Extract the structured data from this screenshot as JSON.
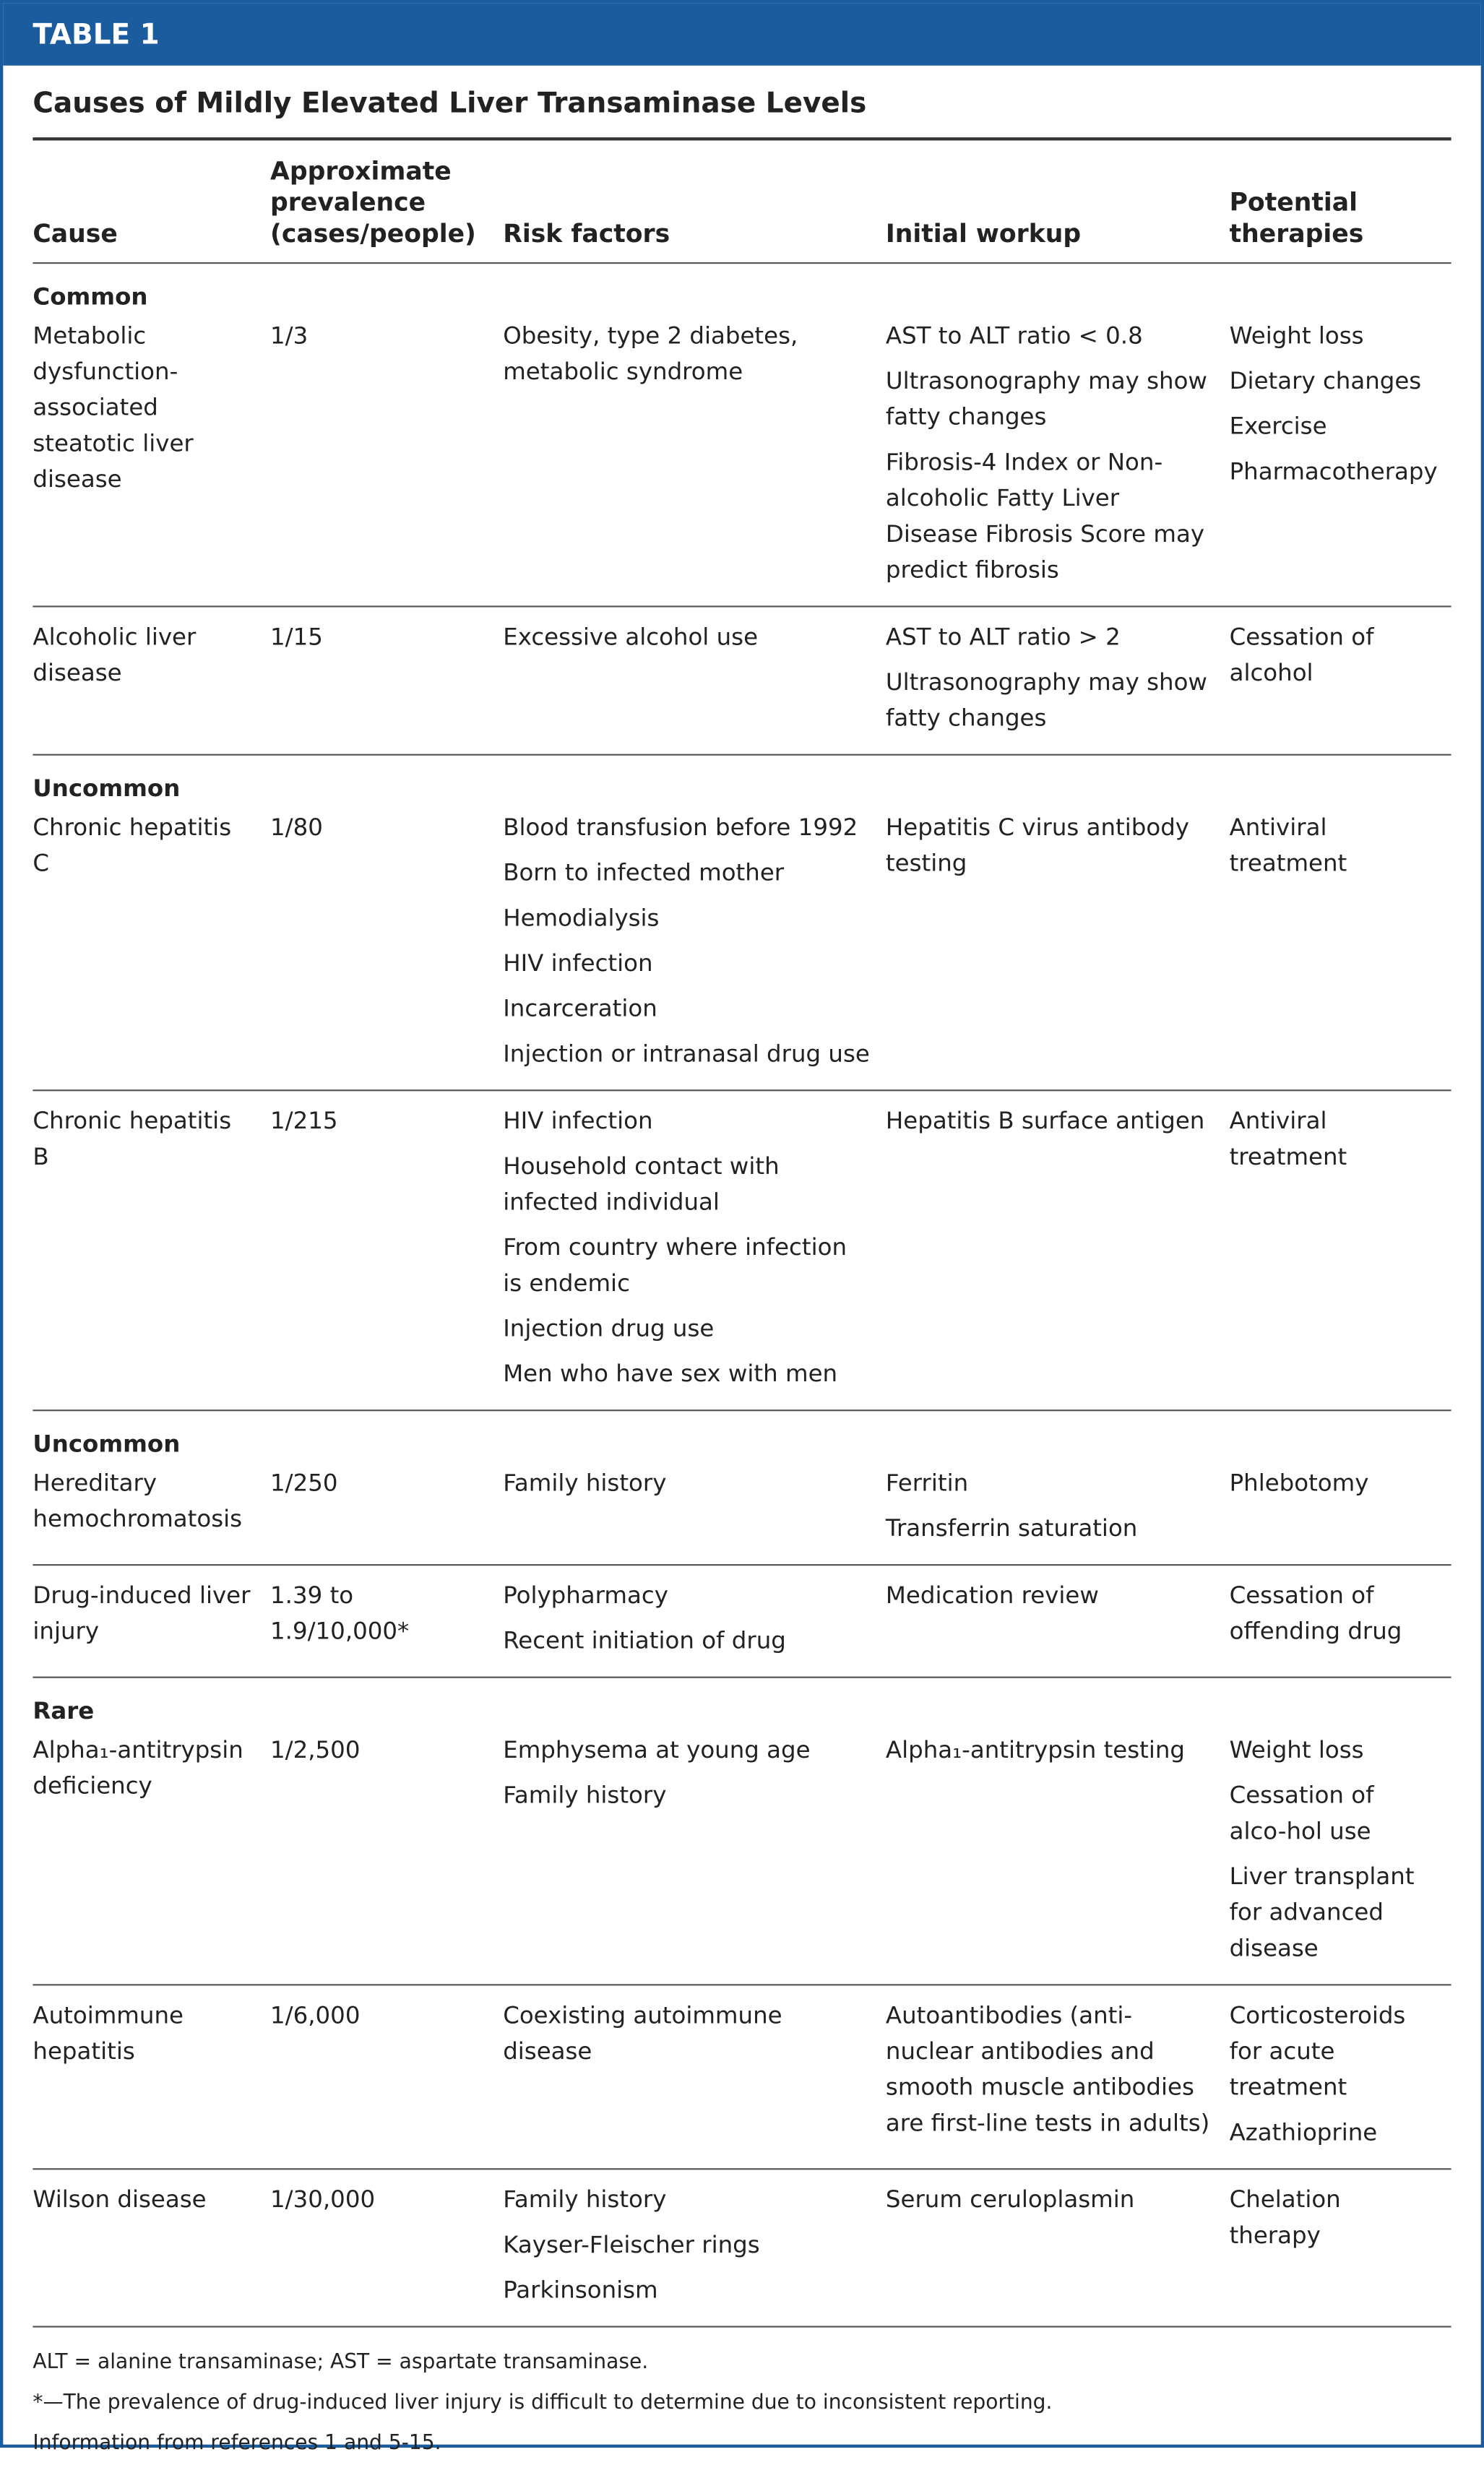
{
  "header": {
    "label": "TABLE 1",
    "title": "Causes of Mildly Elevated Liver Transaminase Levels"
  },
  "table": {
    "columns": [
      "Cause",
      "Approximate prevalence (cases/people)",
      "Risk factors",
      "Initial workup",
      "Potential therapies"
    ],
    "rows": [
      {
        "group": "Common"
      },
      {
        "cells": [
          "Metabolic dysfunction-associated steatotic liver disease",
          "1/3",
          [
            "Obesity, type 2 diabetes, metabolic syndrome"
          ],
          [
            "AST to ALT ratio < 0.8",
            "Ultrasonography may show fatty changes",
            "Fibrosis-4 Index or Non-alcoholic Fatty Liver Disease Fibrosis Score may predict fibrosis"
          ],
          [
            "Weight loss",
            "Dietary changes",
            "Exercise",
            "Pharmacotherapy"
          ]
        ]
      },
      {
        "cells": [
          "Alcoholic liver disease",
          "1/15",
          [
            "Excessive alcohol use"
          ],
          [
            "AST to ALT ratio > 2",
            "Ultrasonography may show fatty changes"
          ],
          [
            "Cessation of alcohol"
          ]
        ]
      },
      {
        "group": "Uncommon"
      },
      {
        "cells": [
          "Chronic hepatitis C",
          "1/80",
          [
            "Blood transfusion before 1992",
            "Born to infected mother",
            "Hemodialysis",
            "HIV infection",
            "Incarceration",
            "Injection or intranasal drug use"
          ],
          [
            "Hepatitis C virus antibody testing"
          ],
          [
            "Antiviral treatment"
          ]
        ]
      },
      {
        "cells": [
          "Chronic hepatitis B",
          "1/215",
          [
            "HIV infection",
            "Household contact with infected individual",
            "From country where infection is endemic",
            "Injection drug use",
            "Men who have sex with men"
          ],
          [
            "Hepatitis B surface antigen"
          ],
          [
            "Antiviral treatment"
          ]
        ]
      },
      {
        "group": "Uncommon"
      },
      {
        "cells": [
          "Hereditary hemochromatosis",
          "1/250",
          [
            "Family history"
          ],
          [
            "Ferritin",
            "Transferrin saturation"
          ],
          [
            "Phlebotomy"
          ]
        ]
      },
      {
        "cells": [
          "Drug-induced liver injury",
          "1.39 to 1.9/10,000*",
          [
            "Polypharmacy",
            "Recent initiation of drug"
          ],
          [
            "Medication review"
          ],
          [
            "Cessation of offending drug"
          ]
        ]
      },
      {
        "group": "Rare"
      },
      {
        "cells": [
          "Alpha₁-antitrypsin deficiency",
          "1/2,500",
          [
            "Emphysema at young age",
            "Family history"
          ],
          [
            "Alpha₁-antitrypsin testing"
          ],
          [
            "Weight loss",
            "Cessation of alco-hol use",
            "Liver transplant for advanced disease"
          ]
        ]
      },
      {
        "cells": [
          "Autoimmune hepatitis",
          "1/6,000",
          [
            "Coexisting autoimmune disease"
          ],
          [
            "Autoantibodies (anti-nuclear antibodies and smooth muscle antibodies are first-line tests in adults)"
          ],
          [
            "Corticosteroids for acute treatment",
            "Azathioprine"
          ]
        ]
      },
      {
        "cells": [
          "Wilson disease",
          "1/30,000",
          [
            "Family history",
            "Kayser-Fleischer rings",
            "Parkinsonism"
          ],
          [
            "Serum ceruloplasmin"
          ],
          [
            "Chelation therapy"
          ]
        ]
      }
    ]
  },
  "footnotes": [
    "ALT = alanine transaminase; AST = aspartate transaminase.",
    "*—The prevalence of drug-induced liver injury is difficult to determine due to inconsistent reporting.",
    "Information from references 1 and 5-15."
  ]
}
